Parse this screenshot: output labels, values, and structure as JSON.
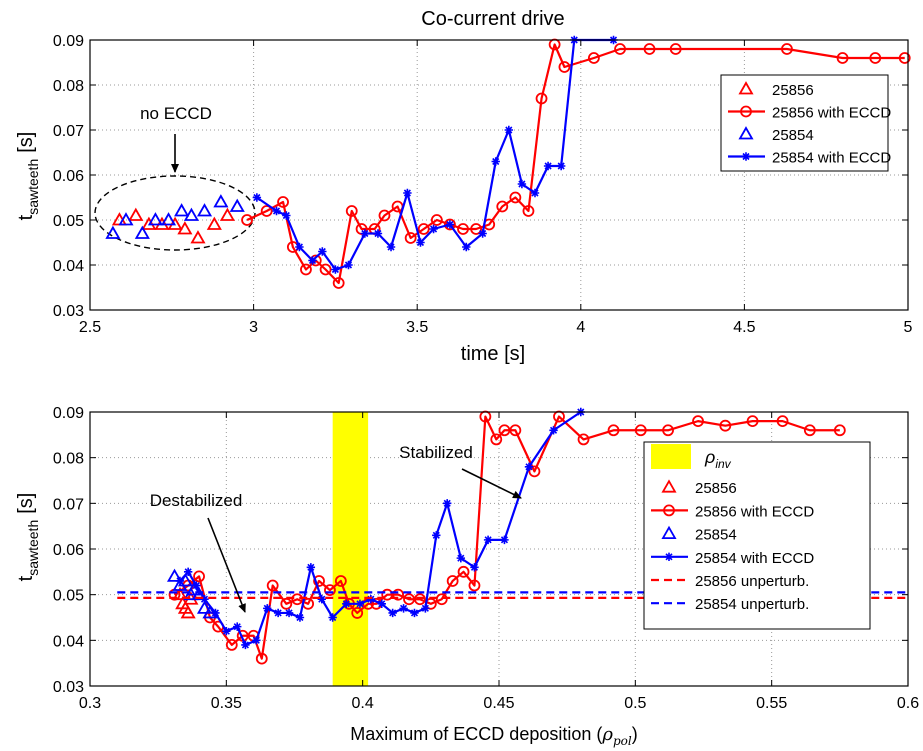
{
  "colors": {
    "red": "#ff0000",
    "blue": "#0000ff",
    "yellow": "#ffff00"
  },
  "chart_data": [
    {
      "type": "line",
      "title": "Co-current drive",
      "xlabel": "time [s]",
      "ylabel_main": "t",
      "ylabel_sub": "sawteeth",
      "ylabel_unit": "[s]",
      "xlim": [
        2.5,
        5
      ],
      "ylim": [
        0.03,
        0.09
      ],
      "xticks": [
        "2.5",
        "3",
        "3.5",
        "4",
        "4.5",
        "5"
      ],
      "yticks": [
        "0.03",
        "0.04",
        "0.05",
        "0.06",
        "0.07",
        "0.08",
        "0.09"
      ],
      "grid": true,
      "legend_position": "top-right",
      "annotations": [
        {
          "text": "no ECCD"
        }
      ],
      "series": [
        {
          "name": "25856",
          "marker": "triangle",
          "line": false,
          "color": "#ff0000",
          "x": [
            2.59,
            2.64,
            2.68,
            2.72,
            2.76,
            2.79,
            2.83,
            2.88,
            2.92
          ],
          "y": [
            0.05,
            0.051,
            0.049,
            0.049,
            0.049,
            0.048,
            0.046,
            0.049,
            0.051
          ]
        },
        {
          "name": "25856 with ECCD",
          "marker": "circle",
          "line": true,
          "color": "#ff0000",
          "x": [
            2.98,
            3.04,
            3.09,
            3.12,
            3.16,
            3.19,
            3.22,
            3.26,
            3.3,
            3.33,
            3.37,
            3.4,
            3.44,
            3.48,
            3.52,
            3.56,
            3.6,
            3.64,
            3.68,
            3.72,
            3.76,
            3.8,
            3.84,
            3.88,
            3.92,
            3.95,
            4.04,
            4.12,
            4.21,
            4.29,
            4.63,
            4.8,
            4.9,
            4.99
          ],
          "y": [
            0.05,
            0.052,
            0.054,
            0.044,
            0.039,
            0.041,
            0.039,
            0.036,
            0.052,
            0.048,
            0.048,
            0.051,
            0.053,
            0.046,
            0.048,
            0.05,
            0.049,
            0.048,
            0.048,
            0.049,
            0.053,
            0.055,
            0.052,
            0.077,
            0.089,
            0.084,
            0.086,
            0.088,
            0.088,
            0.088,
            0.088,
            0.086,
            0.086,
            0.086
          ]
        },
        {
          "name": "25854",
          "marker": "triangle",
          "line": false,
          "color": "#0000ff",
          "x": [
            2.57,
            2.61,
            2.66,
            2.7,
            2.74,
            2.78,
            2.81,
            2.85,
            2.9,
            2.95
          ],
          "y": [
            0.047,
            0.05,
            0.047,
            0.05,
            0.05,
            0.052,
            0.051,
            0.052,
            0.054,
            0.053
          ]
        },
        {
          "name": "25854 with ECCD",
          "marker": "star",
          "line": true,
          "color": "#0000ff",
          "x": [
            3.01,
            3.07,
            3.1,
            3.14,
            3.18,
            3.21,
            3.25,
            3.29,
            3.34,
            3.38,
            3.42,
            3.47,
            3.51,
            3.55,
            3.6,
            3.65,
            3.7,
            3.74,
            3.78,
            3.82,
            3.86,
            3.9,
            3.94,
            3.98,
            4.1
          ],
          "y": [
            0.055,
            0.052,
            0.051,
            0.044,
            0.041,
            0.043,
            0.039,
            0.04,
            0.047,
            0.047,
            0.044,
            0.056,
            0.045,
            0.048,
            0.049,
            0.044,
            0.047,
            0.063,
            0.07,
            0.058,
            0.056,
            0.062,
            0.062,
            0.09,
            0.09
          ]
        }
      ]
    },
    {
      "type": "line",
      "xlabel": "Maximum of ECCD deposition (",
      "xlabel_symbol": "ρ",
      "xlabel_symbol_sub": "pol",
      "xlabel_end": ")",
      "ylabel_main": "t",
      "ylabel_sub": "sawteeth",
      "ylabel_unit": "[s]",
      "xlim": [
        0.3,
        0.6
      ],
      "ylim": [
        0.03,
        0.09
      ],
      "xticks": [
        "0.3",
        "0.35",
        "0.4",
        "0.45",
        "0.5",
        "0.55",
        "0.6"
      ],
      "yticks": [
        "0.03",
        "0.04",
        "0.05",
        "0.06",
        "0.07",
        "0.08",
        "0.09"
      ],
      "grid": true,
      "legend_position": "right",
      "annotations": [
        {
          "text": "Stabilized"
        },
        {
          "text": "Destabilized"
        }
      ],
      "band": {
        "name_symbol": "ρ",
        "name_sub": "inv",
        "x": [
          0.389,
          0.402
        ],
        "color": "#ffff00"
      },
      "series": [
        {
          "name": "25856",
          "marker": "triangle",
          "line": false,
          "color": "#ff0000",
          "x": [
            0.333,
            0.334,
            0.335,
            0.336,
            0.337
          ],
          "y": [
            0.05,
            0.048,
            0.047,
            0.046,
            0.049
          ]
        },
        {
          "name": "25856 with ECCD",
          "marker": "circle",
          "line": true,
          "color": "#ff0000",
          "x": [
            0.331,
            0.336,
            0.34,
            0.344,
            0.347,
            0.352,
            0.356,
            0.36,
            0.363,
            0.367,
            0.372,
            0.376,
            0.38,
            0.384,
            0.388,
            0.392,
            0.395,
            0.398,
            0.402,
            0.405,
            0.409,
            0.413,
            0.417,
            0.421,
            0.425,
            0.429,
            0.433,
            0.437,
            0.441,
            0.445,
            0.449,
            0.452,
            0.456,
            0.463,
            0.472,
            0.481,
            0.492,
            0.502,
            0.512,
            0.523,
            0.533,
            0.543,
            0.554,
            0.564,
            0.575
          ],
          "y": [
            0.05,
            0.052,
            0.054,
            0.045,
            0.043,
            0.039,
            0.041,
            0.041,
            0.036,
            0.052,
            0.048,
            0.049,
            0.048,
            0.053,
            0.051,
            0.053,
            0.048,
            0.046,
            0.048,
            0.048,
            0.05,
            0.05,
            0.049,
            0.049,
            0.048,
            0.049,
            0.053,
            0.055,
            0.052,
            0.089,
            0.084,
            0.086,
            0.086,
            0.077,
            0.089,
            0.084,
            0.086,
            0.086,
            0.086,
            0.088,
            0.087,
            0.088,
            0.088,
            0.086,
            0.086
          ]
        },
        {
          "name": "25854",
          "marker": "triangle",
          "line": false,
          "color": "#0000ff",
          "x": [
            0.331,
            0.333,
            0.335,
            0.337,
            0.338,
            0.34,
            0.342,
            0.344
          ],
          "y": [
            0.054,
            0.052,
            0.053,
            0.05,
            0.051,
            0.05,
            0.047,
            0.046
          ]
        },
        {
          "name": "25854 with ECCD",
          "marker": "star",
          "line": true,
          "color": "#0000ff",
          "x": [
            0.333,
            0.336,
            0.339,
            0.342,
            0.346,
            0.35,
            0.354,
            0.357,
            0.361,
            0.365,
            0.369,
            0.373,
            0.377,
            0.381,
            0.385,
            0.389,
            0.394,
            0.399,
            0.403,
            0.407,
            0.411,
            0.415,
            0.419,
            0.423,
            0.427,
            0.431,
            0.436,
            0.441,
            0.446,
            0.452,
            0.461,
            0.47,
            0.48
          ],
          "y": [
            0.053,
            0.055,
            0.052,
            0.049,
            0.046,
            0.042,
            0.043,
            0.039,
            0.04,
            0.047,
            0.046,
            0.046,
            0.045,
            0.056,
            0.049,
            0.045,
            0.048,
            0.048,
            0.049,
            0.048,
            0.046,
            0.047,
            0.046,
            0.047,
            0.063,
            0.07,
            0.058,
            0.056,
            0.062,
            0.062,
            0.078,
            0.086,
            0.09
          ]
        },
        {
          "name": "25856 unperturb.",
          "marker": "none",
          "line": true,
          "dashed": true,
          "color": "#ff0000",
          "x": [
            0.31,
            0.6
          ],
          "y": [
            0.0493,
            0.0493
          ]
        },
        {
          "name": "25854 unperturb.",
          "marker": "none",
          "line": true,
          "dashed": true,
          "color": "#0000ff",
          "x": [
            0.31,
            0.6
          ],
          "y": [
            0.0505,
            0.0505
          ]
        }
      ]
    }
  ]
}
